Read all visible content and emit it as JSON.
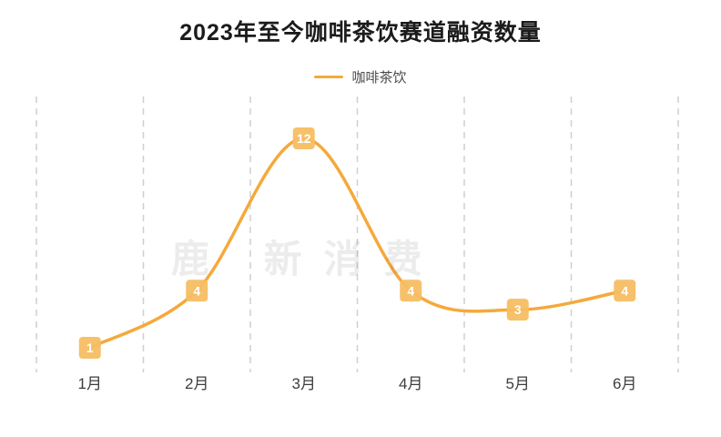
{
  "title": "2023年至今咖啡茶饮赛道融资数量",
  "legend": {
    "label": "咖啡茶饮"
  },
  "watermark": "鹿 新消费",
  "colors": {
    "line": "#F5A93B",
    "label_box": "#F6BE62",
    "label_text": "#FFFFFF",
    "grid": "#CFCFCF",
    "axis_text": "#3D3D3D"
  },
  "chart_data": {
    "type": "line",
    "categories": [
      "1月",
      "2月",
      "3月",
      "4月",
      "5月",
      "6月"
    ],
    "series": [
      {
        "name": "咖啡茶饮",
        "values": [
          1,
          4,
          12,
          4,
          3,
          4
        ]
      }
    ],
    "title": "2023年至今咖啡茶饮赛道融资数量",
    "xlabel": "",
    "ylabel": "",
    "ylim": [
      0,
      13
    ],
    "grid": "vertical-dashed",
    "legend_position": "top",
    "data_labels": true,
    "smooth": true
  }
}
